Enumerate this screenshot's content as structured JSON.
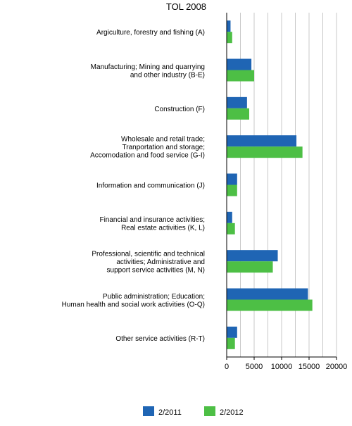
{
  "chart_data": {
    "type": "bar",
    "orientation": "horizontal",
    "title": "TOL 2008",
    "xlabel": "",
    "ylabel": "",
    "xlim": [
      0,
      20000
    ],
    "x_ticks": [
      0,
      5000,
      10000,
      15000,
      20000
    ],
    "x_tick_labels": [
      "0",
      "5000",
      "10000",
      "15000",
      "20000"
    ],
    "grid": "vertical",
    "legend_position": "bottom-center",
    "categories": [
      [
        "Argiculture, forestry and fishing (A)"
      ],
      [
        "Manufacturing; Mining and quarrying",
        "and other industry (B-E)"
      ],
      [
        "Construction (F)"
      ],
      [
        "Wholesale and retail trade;",
        "Tranportation and storage;",
        "Accomodation and food service (G-I)"
      ],
      [
        "Information and communication (J)"
      ],
      [
        "Financial and insurance activities;",
        "Real estate activities (K, L)"
      ],
      [
        "Professional, scientific and technical",
        "activities; Administrative and",
        "support service activities (M, N)"
      ],
      [
        "Public administration; Education;",
        "Human health and social work activities (O-Q)"
      ],
      [
        "Other service activities (R-T)"
      ]
    ],
    "series": [
      {
        "name": "2/2011",
        "color": "#1f65b4",
        "values": [
          700,
          4500,
          3700,
          12700,
          1900,
          1000,
          9300,
          14800,
          1900
        ]
      },
      {
        "name": "2/2012",
        "color": "#4dbf45",
        "values": [
          1000,
          5000,
          4100,
          13800,
          1900,
          1500,
          8400,
          15600,
          1500
        ]
      }
    ]
  }
}
